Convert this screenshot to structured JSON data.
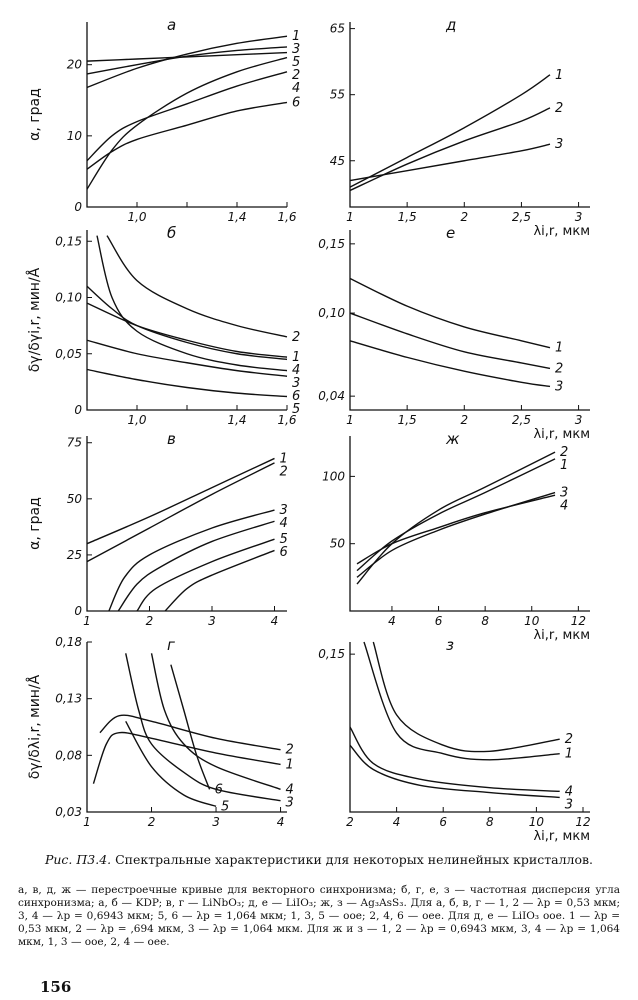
{
  "caption": {
    "title_prefix": "Рис. П3.4.",
    "title": "Спектральные характеристики для некоторых нелинейных кристаллов.",
    "text": "а, в, д, ж — перестроечные кривые для векторного синхронизма; б, г, е, з — частотная дисперсия угла синхронизма; а, б — KDP; в, г — LiNbO₃; д, е — LiIO₃; ж, з — Ag₃AsS₃. Для а, б, в, г — 1, 2 — λp = 0,53 мкм; 3, 4 — λp = 0,6943 мкм; 5, 6 — λp = 1,064 мкм; 1, 3, 5 — ooe; 2, 4, 6 — oee. Для д, е — LiIO₃ ooe. 1 — λp = 0,53 мкм, 2 — λp = ,694 мкм, 3 — λp = 1,064 мкм. Для ж и з — 1, 2 — λp = 0,6943 мкм, 3, 4 — λp = 1,064 мкм, 1, 3 — ooe, 2, 4 — oee."
  },
  "page_number": "156",
  "chart_data": [
    {
      "type": "line",
      "title": "а",
      "ylabel": "α, град",
      "xlabel": "",
      "xlim": [
        0.8,
        1.6
      ],
      "ylim": [
        0,
        26
      ],
      "xticks": [
        1.0,
        1.2,
        1.4,
        1.6
      ],
      "xtick_labels": [
        "1,0",
        "",
        "1,4",
        "1,6"
      ],
      "yticks": [
        0,
        10,
        20
      ],
      "ytick_labels": [
        "0",
        "10",
        "20"
      ],
      "series": [
        {
          "name": "1",
          "x": [
            0.8,
            1.0,
            1.2,
            1.4,
            1.6
          ],
          "y": [
            16.8,
            19.5,
            21.5,
            23,
            24
          ]
        },
        {
          "name": "3",
          "x": [
            0.8,
            1.0,
            1.2,
            1.4,
            1.6
          ],
          "y": [
            18.7,
            20,
            21.2,
            22,
            22.5
          ]
        },
        {
          "name": "5",
          "x": [
            0.8,
            1.0,
            1.2,
            1.4,
            1.6
          ],
          "y": [
            20.5,
            20.8,
            21.1,
            21.4,
            21.7
          ]
        },
        {
          "name": "2",
          "x": [
            0.8,
            0.9,
            1.0,
            1.2,
            1.4,
            1.6
          ],
          "y": [
            2.5,
            8,
            11.5,
            16,
            19,
            21
          ]
        },
        {
          "name": "4",
          "x": [
            0.8,
            0.9,
            1.0,
            1.2,
            1.4,
            1.6
          ],
          "y": [
            6.5,
            10,
            12,
            14.5,
            17,
            19
          ]
        },
        {
          "name": "6",
          "x": [
            0.8,
            0.9,
            1.0,
            1.2,
            1.4,
            1.6
          ],
          "y": [
            5.3,
            7.8,
            9.5,
            11.5,
            13.5,
            14.7
          ]
        }
      ]
    },
    {
      "type": "line",
      "title": "д",
      "ylabel": "",
      "xlabel": "λi,r, мкм",
      "xlim": [
        1,
        3.1
      ],
      "ylim": [
        38,
        66
      ],
      "xticks": [
        1,
        1.5,
        2,
        2.5,
        3
      ],
      "xtick_labels": [
        "1",
        "1,5",
        "2",
        "2,5",
        "3"
      ],
      "yticks": [
        45,
        55,
        65
      ],
      "ytick_labels": [
        "45",
        "55",
        "65"
      ],
      "series": [
        {
          "name": "1",
          "x": [
            1,
            1.5,
            2,
            2.5,
            2.75
          ],
          "y": [
            41,
            45.5,
            50,
            55,
            58
          ]
        },
        {
          "name": "2",
          "x": [
            1,
            1.5,
            2,
            2.5,
            2.75
          ],
          "y": [
            40.5,
            44.5,
            48,
            51,
            53
          ]
        },
        {
          "name": "3",
          "x": [
            1,
            1.5,
            2,
            2.5,
            2.75
          ],
          "y": [
            42,
            43.5,
            45,
            46.5,
            47.5
          ]
        }
      ]
    },
    {
      "type": "line",
      "title": "б",
      "ylabel": "δγ/δγi,r, мин/Å",
      "xlabel": "",
      "xlim": [
        0.8,
        1.6
      ],
      "ylim": [
        0,
        0.16
      ],
      "xticks": [
        1.0,
        1.2,
        1.4,
        1.6
      ],
      "xtick_labels": [
        "1,0",
        "",
        "1,4",
        "1,6"
      ],
      "yticks": [
        0,
        0.05,
        0.1,
        0.15
      ],
      "ytick_labels": [
        "0",
        "0,05",
        "0,10",
        "0,15"
      ],
      "series": [
        {
          "name": "2",
          "x": [
            0.88,
            1.0,
            1.2,
            1.4,
            1.6
          ],
          "y": [
            0.155,
            0.115,
            0.09,
            0.075,
            0.065
          ]
        },
        {
          "name": "4",
          "x": [
            0.8,
            0.9,
            1.0,
            1.2,
            1.4,
            1.6
          ],
          "y": [
            0.11,
            0.09,
            0.075,
            0.06,
            0.05,
            0.045
          ]
        },
        {
          "name": "1",
          "x": [
            0.8,
            1.0,
            1.2,
            1.4,
            1.6
          ],
          "y": [
            0.095,
            0.075,
            0.062,
            0.052,
            0.047
          ]
        },
        {
          "name": "3",
          "x": [
            0.84,
            0.9,
            1.0,
            1.2,
            1.4,
            1.6
          ],
          "y": [
            0.155,
            0.1,
            0.07,
            0.05,
            0.04,
            0.035
          ]
        },
        {
          "name": "6",
          "x": [
            0.8,
            1.0,
            1.2,
            1.4,
            1.6
          ],
          "y": [
            0.062,
            0.05,
            0.042,
            0.035,
            0.03
          ]
        },
        {
          "name": "5",
          "x": [
            0.8,
            1.0,
            1.2,
            1.4,
            1.6
          ],
          "y": [
            0.036,
            0.027,
            0.02,
            0.015,
            0.012
          ]
        }
      ]
    },
    {
      "type": "line",
      "title": "е",
      "ylabel": "",
      "xlabel": "λi,r, мкм",
      "xlim": [
        1,
        3.1
      ],
      "ylim": [
        0.03,
        0.16
      ],
      "xticks": [
        1,
        1.5,
        2,
        2.5,
        3
      ],
      "xtick_labels": [
        "1",
        "1,5",
        "2",
        "2,5",
        "3"
      ],
      "yticks": [
        0.04,
        0.1,
        0.15
      ],
      "ytick_labels": [
        "0,04",
        "0,10",
        "0,15"
      ],
      "series": [
        {
          "name": "1",
          "x": [
            1,
            1.5,
            2,
            2.5,
            2.75
          ],
          "y": [
            0.125,
            0.105,
            0.09,
            0.08,
            0.075
          ]
        },
        {
          "name": "2",
          "x": [
            1,
            1.5,
            2,
            2.5,
            2.75
          ],
          "y": [
            0.1,
            0.085,
            0.072,
            0.064,
            0.06
          ]
        },
        {
          "name": "3",
          "x": [
            1,
            1.5,
            2,
            2.5,
            2.75
          ],
          "y": [
            0.08,
            0.068,
            0.058,
            0.05,
            0.047
          ]
        }
      ]
    },
    {
      "type": "line",
      "title": "в",
      "ylabel": "α, град",
      "xlabel": "",
      "xlim": [
        1,
        4.2
      ],
      "ylim": [
        0,
        78
      ],
      "xticks": [
        1,
        2,
        3,
        4
      ],
      "xtick_labels": [
        "1",
        "2",
        "3",
        "4"
      ],
      "yticks": [
        0,
        25,
        50,
        75
      ],
      "ytick_labels": [
        "0",
        "25",
        "50",
        "75"
      ],
      "series": [
        {
          "name": "1",
          "x": [
            1,
            2,
            3,
            4
          ],
          "y": [
            30,
            42,
            55,
            68
          ]
        },
        {
          "name": "2",
          "x": [
            1,
            2,
            3,
            4
          ],
          "y": [
            22,
            37,
            52,
            66
          ]
        },
        {
          "name": "3",
          "x": [
            1.35,
            1.6,
            2,
            3,
            4
          ],
          "y": [
            0,
            15,
            25,
            37,
            45
          ]
        },
        {
          "name": "4",
          "x": [
            1.5,
            1.8,
            2.2,
            3,
            4
          ],
          "y": [
            0,
            12,
            20,
            31,
            40
          ]
        },
        {
          "name": "5",
          "x": [
            1.8,
            2.1,
            3,
            4
          ],
          "y": [
            0,
            10,
            22,
            32
          ]
        },
        {
          "name": "6",
          "x": [
            2.25,
            2.6,
            3,
            4
          ],
          "y": [
            0,
            10,
            16,
            27
          ]
        }
      ]
    },
    {
      "type": "line",
      "title": "ж",
      "ylabel": "",
      "xlabel": "λi,r, мкм",
      "xlim": [
        2.2,
        12.5
      ],
      "ylim": [
        0,
        130
      ],
      "xticks": [
        4,
        6,
        8,
        10,
        12
      ],
      "xtick_labels": [
        "4",
        "6",
        "8",
        "10",
        "12"
      ],
      "yticks": [
        50,
        100
      ],
      "ytick_labels": [
        "50",
        "100"
      ],
      "series": [
        {
          "name": "2",
          "x": [
            2.5,
            4,
            6,
            8,
            11
          ],
          "y": [
            20,
            50,
            75,
            92,
            118
          ]
        },
        {
          "name": "1",
          "x": [
            2.5,
            4,
            6,
            8,
            11
          ],
          "y": [
            30,
            52,
            72,
            88,
            113
          ]
        },
        {
          "name": "3",
          "x": [
            2.5,
            4,
            6,
            8,
            11
          ],
          "y": [
            25,
            45,
            60,
            72,
            88
          ]
        },
        {
          "name": "4",
          "x": [
            2.5,
            4,
            6,
            8,
            11
          ],
          "y": [
            35,
            50,
            62,
            73,
            86
          ]
        }
      ]
    },
    {
      "type": "line",
      "title": "г",
      "ylabel": "δγ/δλi,r, мин/Å",
      "xlabel": "",
      "xlim": [
        1,
        4.1
      ],
      "ylim": [
        0.03,
        0.18
      ],
      "xticks": [
        1,
        2,
        3,
        4
      ],
      "xtick_labels": [
        "1",
        "2",
        "3",
        "4"
      ],
      "yticks": [
        0.03,
        0.08,
        0.13,
        0.18
      ],
      "ytick_labels": [
        "0,03",
        "0,08",
        "0,13",
        "0,18"
      ],
      "series": [
        {
          "name": "1",
          "x": [
            1.1,
            1.3,
            1.5,
            2,
            3,
            4
          ],
          "y": [
            0.055,
            0.09,
            0.1,
            0.095,
            0.082,
            0.072
          ]
        },
        {
          "name": "2",
          "x": [
            1.2,
            1.5,
            2,
            3,
            4
          ],
          "y": [
            0.1,
            0.115,
            0.11,
            0.095,
            0.085
          ]
        },
        {
          "name": "3",
          "x": [
            1.6,
            1.8,
            2,
            2.5,
            3,
            4
          ],
          "y": [
            0.17,
            0.12,
            0.09,
            0.065,
            0.05,
            0.04
          ]
        },
        {
          "name": "4",
          "x": [
            2.0,
            2.2,
            2.5,
            3,
            4
          ],
          "y": [
            0.17,
            0.12,
            0.09,
            0.07,
            0.05
          ]
        },
        {
          "name": "5",
          "x": [
            1.6,
            2,
            2.5,
            3
          ],
          "y": [
            0.11,
            0.07,
            0.045,
            0.035
          ]
        },
        {
          "name": "6",
          "x": [
            2.3,
            2.5,
            2.7,
            2.9
          ],
          "y": [
            0.16,
            0.12,
            0.08,
            0.05
          ]
        }
      ]
    },
    {
      "type": "line",
      "title": "з",
      "ylabel": "",
      "xlabel": "λi,r, мкм",
      "xlim": [
        2,
        12.3
      ],
      "ylim": [
        0.02,
        0.16
      ],
      "xticks": [
        2,
        4,
        6,
        8,
        10,
        12
      ],
      "xtick_labels": [
        "2",
        "4",
        "6",
        "8",
        "10",
        "12"
      ],
      "yticks": [
        0.15
      ],
      "ytick_labels": [
        "0,15"
      ],
      "series": [
        {
          "name": "2",
          "x": [
            3,
            4,
            6,
            8,
            11
          ],
          "y": [
            0.16,
            0.1,
            0.075,
            0.07,
            0.08
          ]
        },
        {
          "name": "1",
          "x": [
            2.6,
            4,
            6,
            8,
            11
          ],
          "y": [
            0.16,
            0.085,
            0.068,
            0.063,
            0.068
          ]
        },
        {
          "name": "4",
          "x": [
            2,
            3,
            5,
            8,
            11
          ],
          "y": [
            0.09,
            0.06,
            0.047,
            0.04,
            0.037
          ]
        },
        {
          "name": "3",
          "x": [
            2,
            3,
            5,
            8,
            11
          ],
          "y": [
            0.075,
            0.055,
            0.042,
            0.036,
            0.032
          ]
        }
      ]
    }
  ]
}
